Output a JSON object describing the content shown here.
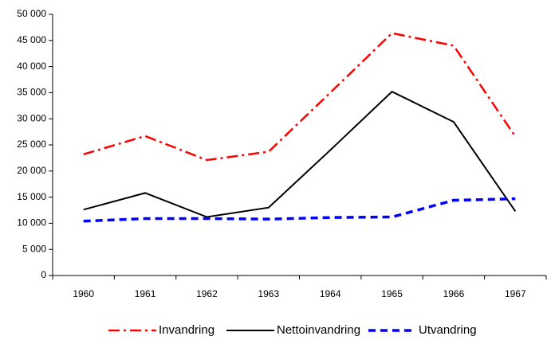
{
  "chart_data": {
    "type": "line",
    "categories": [
      "1960",
      "1961",
      "1962",
      "1963",
      "1964",
      "1965",
      "1966",
      "1967"
    ],
    "series": [
      {
        "name": "Invandring",
        "color": "#ff0000",
        "dash": "dashdot",
        "values": [
          23200,
          26700,
          22100,
          23700,
          35000,
          46400,
          44000,
          26600
        ]
      },
      {
        "name": "Nettoinvandring",
        "color": "#000000",
        "dash": "solid",
        "values": [
          12600,
          15800,
          11200,
          13000,
          24000,
          35200,
          29400,
          12300
        ]
      },
      {
        "name": "Utvandring",
        "color": "#0000ff",
        "dash": "dash",
        "values": [
          10400,
          10900,
          10900,
          10800,
          11100,
          11200,
          14400,
          14700
        ]
      }
    ],
    "ylim": [
      0,
      50000
    ],
    "yticks": [
      {
        "value": 0,
        "label": "0"
      },
      {
        "value": 5000,
        "label": "5 000"
      },
      {
        "value": 10000,
        "label": "10 000"
      },
      {
        "value": 15000,
        "label": "15 000"
      },
      {
        "value": 20000,
        "label": "20 000"
      },
      {
        "value": 25000,
        "label": "25 000"
      },
      {
        "value": 30000,
        "label": "30 000"
      },
      {
        "value": 35000,
        "label": "35 000"
      },
      {
        "value": 40000,
        "label": "40 000"
      },
      {
        "value": 45000,
        "label": "45 000"
      },
      {
        "value": 50000,
        "label": "50 000"
      }
    ],
    "legend": "bottom"
  }
}
